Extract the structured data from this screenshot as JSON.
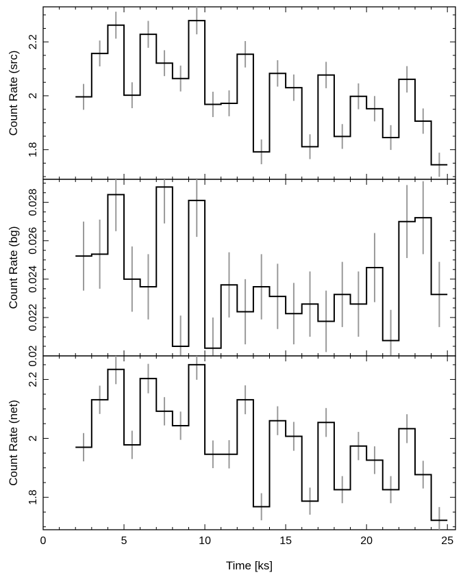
{
  "chart_data": {
    "type": "line",
    "shared_xlabel": "Time [ks]",
    "xlim": [
      0,
      25.5
    ],
    "x_ticks": [
      0,
      5,
      10,
      15,
      20,
      25
    ],
    "bin_width": 1,
    "bin_centers": [
      2.5,
      3.5,
      4.5,
      5.5,
      6.5,
      7.5,
      8.5,
      9.5,
      10.5,
      11.5,
      12.5,
      13.5,
      14.5,
      15.5,
      16.5,
      17.5,
      18.5,
      19.5,
      20.5,
      21.5,
      22.5,
      23.5,
      24.5
    ],
    "panels": [
      {
        "ylabel": "Count Rate (src)",
        "ylim": [
          1.69,
          2.33
        ],
        "y_ticks": [
          1.8,
          2.0,
          2.2
        ],
        "y_tick_labels": [
          "1.8",
          "2",
          "2.2"
        ],
        "values": [
          1.996,
          2.157,
          2.262,
          2.002,
          2.228,
          2.121,
          2.064,
          2.279,
          1.968,
          1.972,
          2.154,
          1.792,
          2.083,
          2.03,
          1.811,
          2.077,
          1.849,
          1.998,
          1.952,
          1.845,
          2.061,
          1.906,
          1.744
        ],
        "errors": [
          0.048,
          0.048,
          0.05,
          0.048,
          0.05,
          0.048,
          0.048,
          0.051,
          0.047,
          0.048,
          0.049,
          0.046,
          0.049,
          0.049,
          0.046,
          0.049,
          0.046,
          0.048,
          0.047,
          0.046,
          0.049,
          0.047,
          0.045
        ]
      },
      {
        "ylabel": "Count Rate (bg)",
        "ylim": [
          0.02,
          0.0292
        ],
        "y_ticks": [
          0.02,
          0.022,
          0.024,
          0.026,
          0.028
        ],
        "y_tick_labels": [
          "0.02",
          "0.022",
          "0.024",
          "0.026",
          "0.028"
        ],
        "values": [
          0.0252,
          0.0253,
          0.0284,
          0.024,
          0.0236,
          0.0288,
          0.0205,
          0.0281,
          0.0204,
          0.0237,
          0.0223,
          0.0236,
          0.0231,
          0.0222,
          0.0227,
          0.0218,
          0.0232,
          0.0227,
          0.0246,
          0.0208,
          0.027,
          0.0272,
          0.0232
        ],
        "errors": [
          0.0018,
          0.0018,
          0.0019,
          0.0017,
          0.0017,
          0.0019,
          0.0016,
          0.0019,
          0.0016,
          0.0017,
          0.0017,
          0.0017,
          0.0017,
          0.0016,
          0.0017,
          0.0016,
          0.0017,
          0.0017,
          0.0018,
          0.0016,
          0.0019,
          0.0019,
          0.0017
        ]
      },
      {
        "ylabel": "Count Rate (net)",
        "ylim": [
          1.69,
          2.28
        ],
        "y_ticks": [
          1.8,
          2.0,
          2.2
        ],
        "y_tick_labels": [
          "1.8",
          "2",
          "2.2"
        ],
        "values": [
          1.97,
          2.131,
          2.234,
          1.978,
          2.203,
          2.092,
          2.043,
          2.25,
          1.946,
          1.946,
          2.131,
          1.768,
          2.06,
          2.007,
          1.787,
          2.054,
          1.826,
          1.974,
          1.926,
          1.826,
          2.033,
          1.877,
          1.722
        ],
        "errors": [
          0.048,
          0.048,
          0.05,
          0.048,
          0.05,
          0.048,
          0.048,
          0.051,
          0.047,
          0.048,
          0.049,
          0.046,
          0.049,
          0.049,
          0.046,
          0.049,
          0.046,
          0.048,
          0.047,
          0.046,
          0.049,
          0.047,
          0.045
        ]
      }
    ]
  }
}
